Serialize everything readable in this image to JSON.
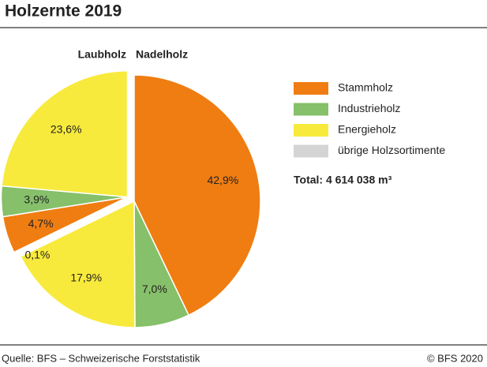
{
  "chart_data": {
    "type": "pie",
    "title": "Holzernte 2019",
    "categories": [
      {
        "name": "Stammholz",
        "color": "#ef7d12"
      },
      {
        "name": "Industrieholz",
        "color": "#86c06a"
      },
      {
        "name": "Energieholz",
        "color": "#f8ea3c"
      },
      {
        "name": "übrige Holzsortimente",
        "color": "#d4d4d4"
      }
    ],
    "groups": [
      {
        "name": "Nadelholz",
        "values": [
          42.9,
          7.0,
          17.9,
          null
        ],
        "value_labels": [
          "42,9%",
          "7,0%",
          "17,9%",
          null
        ]
      },
      {
        "name": "Laubholz",
        "values": [
          4.7,
          3.9,
          23.6,
          0.1
        ],
        "value_labels": [
          "4,7%",
          "3,9%",
          "23,6%",
          "0,1%"
        ]
      }
    ],
    "total": "Total: 4 614 038 m³",
    "source": "Quelle: BFS – Schweizerische Forststatistik",
    "copyright": "© BFS 2020"
  }
}
